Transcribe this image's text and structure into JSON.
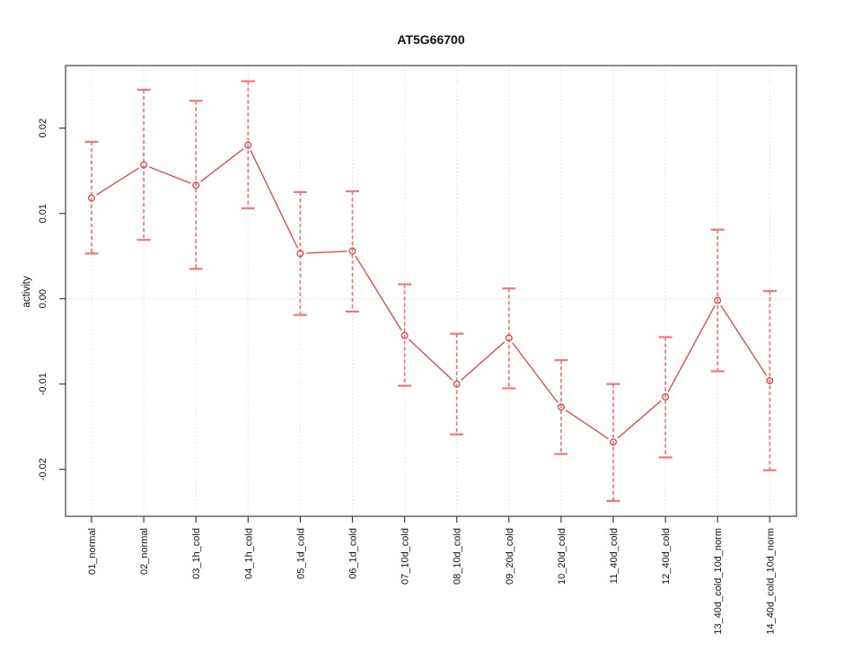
{
  "chart": {
    "title": "AT5G66700",
    "ylabel": "activity"
  },
  "chart_data": {
    "type": "line",
    "title": "AT5G66700",
    "xlabel": "",
    "ylabel": "activity",
    "legend": "none",
    "marker": "open-circle",
    "line_style": "solid segments with gaps at markers",
    "error_bar_style": "dashed stem with flat caps",
    "grid": {
      "vertical": "dotted line at each category",
      "horizontal": "dotted line at y=0"
    },
    "ylim": [
      -0.0255,
      0.0273
    ],
    "yticks": [
      0.02,
      0.01,
      0.0,
      -0.01,
      -0.02
    ],
    "ytick_labels": [
      "0.02",
      "0.01",
      "0.00",
      "-0.01",
      "-0.02"
    ],
    "categories": [
      "01_normal",
      "02_normal",
      "03_1h_cold",
      "04_1h_cold",
      "05_1d_cold",
      "06_1d_cold",
      "07_10d_cold",
      "08_10d_cold",
      "09_20d_cold",
      "10_20d_cold",
      "11_40d_cold",
      "12_40d_cold",
      "13_40d_cold_10d_norm",
      "14_40d_cold_10d_norm"
    ],
    "series": [
      {
        "name": "AT5G66700",
        "values": [
          0.0118,
          0.0157,
          0.0133,
          0.018,
          0.0053,
          0.0056,
          -0.0043,
          -0.01,
          -0.0046,
          -0.0127,
          -0.0168,
          -0.0115,
          -0.0002,
          -0.0096
        ],
        "upper": [
          0.0184,
          0.0245,
          0.0232,
          0.0255,
          0.0125,
          0.0126,
          0.0017,
          -0.0041,
          0.0012,
          -0.0072,
          -0.01,
          -0.0045,
          0.0081,
          0.0009
        ],
        "lower": [
          0.0053,
          0.0069,
          0.0035,
          0.0106,
          -0.0019,
          -0.0015,
          -0.0102,
          -0.0159,
          -0.0105,
          -0.0182,
          -0.0237,
          -0.0186,
          -0.0085,
          -0.0201
        ]
      }
    ],
    "colors": {
      "series": "#e84040",
      "error_bar": "#f07878",
      "grid": "#d9d9d9",
      "axis": "#404040",
      "text": "#111111",
      "background": "#ffffff"
    }
  }
}
